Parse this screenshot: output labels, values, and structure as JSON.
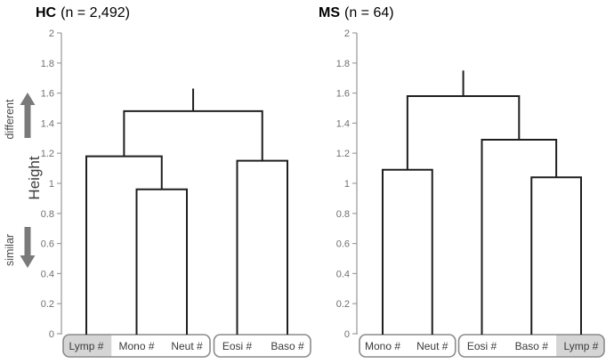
{
  "chart_data": {
    "type": "dendrogram",
    "ylabel": "Height",
    "ylim": [
      0,
      2
    ],
    "yticks": [
      {
        "value": 2,
        "label": "2"
      },
      {
        "value": 1.8,
        "label": "1.8"
      },
      {
        "value": 1.6,
        "label": "1.6"
      },
      {
        "value": 1.4,
        "label": "1.4"
      },
      {
        "value": 1.2,
        "label": "1.2"
      },
      {
        "value": 1,
        "label": "1"
      },
      {
        "value": 0.8,
        "label": "0.8"
      },
      {
        "value": 0.6,
        "label": "0.6"
      },
      {
        "value": 0.4,
        "label": "0.4"
      },
      {
        "value": 0.2,
        "label": "0.2"
      },
      {
        "value": 0,
        "label": "0"
      }
    ],
    "axis_annotations": {
      "top": "different",
      "bottom": "similar"
    },
    "panels": [
      {
        "title": {
          "group": "HC",
          "suffix": "(n = 2,492)"
        },
        "leaves": [
          "Lymp #",
          "Mono #",
          "Neut #",
          "Eosi #",
          "Baso #"
        ],
        "highlighted_leaves": [
          "Lymp #"
        ],
        "leaf_boxes": [
          [
            "Lymp #",
            "Mono #",
            "Neut #"
          ],
          [
            "Eosi #",
            "Baso #"
          ]
        ],
        "root_stub_height": 1.63,
        "tree": {
          "height": 1.48,
          "children": [
            {
              "height": 1.18,
              "children": [
                "Lymp #",
                {
                  "height": 0.96,
                  "children": [
                    "Mono #",
                    "Neut #"
                  ]
                }
              ]
            },
            {
              "height": 1.15,
              "children": [
                "Eosi #",
                "Baso #"
              ]
            }
          ]
        }
      },
      {
        "title": {
          "group": "MS",
          "suffix": "(n = 64)"
        },
        "leaves": [
          "Mono #",
          "Neut #",
          "Eosi #",
          "Baso #",
          "Lymp #"
        ],
        "highlighted_leaves": [
          "Lymp #"
        ],
        "leaf_boxes": [
          [
            "Mono #",
            "Neut #"
          ],
          [
            "Eosi #",
            "Baso #",
            "Lymp #"
          ]
        ],
        "root_stub_height": 1.75,
        "tree": {
          "height": 1.58,
          "children": [
            {
              "height": 1.09,
              "children": [
                "Mono #",
                "Neut #"
              ]
            },
            {
              "height": 1.29,
              "children": [
                "Eosi #",
                {
                  "height": 1.04,
                  "children": [
                    "Baso #",
                    "Lymp #"
                  ]
                }
              ]
            }
          ]
        }
      }
    ],
    "colors": {
      "line": "#1f1f1f",
      "axis": "#9e9e9e",
      "tick_label": "#707070",
      "arrow": "#7a7a7a",
      "box_border": "#8c8c8c",
      "box_fill": "#ffffff",
      "box_highlight": "#d5d5d5",
      "leaf_text": "#3a3a3a",
      "title_text": "#000000"
    }
  }
}
